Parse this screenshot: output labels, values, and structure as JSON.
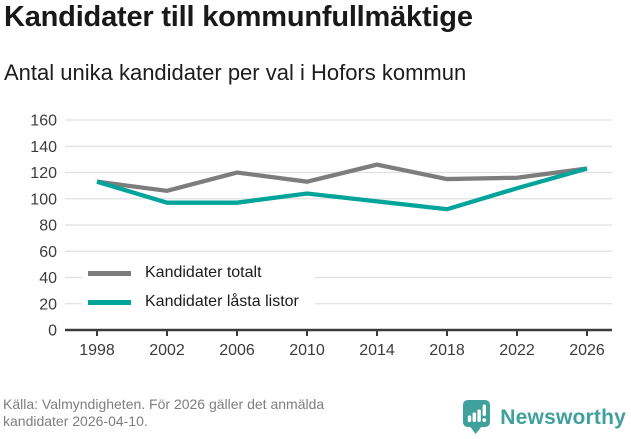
{
  "header": {
    "title": "Kandidater till kommunfullmäktige",
    "subtitle": "Antal unika kandidater per val i Hofors kommun"
  },
  "chart_data": {
    "type": "line",
    "title": "Kandidater till kommunfullmäktige",
    "subtitle": "Antal unika kandidater per val i Hofors kommun",
    "categories": [
      "1998",
      "2002",
      "2006",
      "2010",
      "2014",
      "2018",
      "2022",
      "2026"
    ],
    "series": [
      {
        "name": "Kandidater totalt",
        "color": "#7d7d7d",
        "values": [
          113,
          106,
          120,
          113,
          126,
          115,
          116,
          123
        ]
      },
      {
        "name": "Kandidater låsta listor",
        "color": "#00a49b",
        "values": [
          113,
          97,
          97,
          104,
          98,
          92,
          108,
          123
        ]
      }
    ],
    "ylim": [
      0,
      160
    ],
    "ytick_step": 20,
    "xlabel": "",
    "ylabel": "",
    "grid": true,
    "legend_position": "inside-bottom-left"
  },
  "footer": {
    "source_lines": [
      "Källa: Valmyndigheten. För 2026 gäller det anmälda",
      "kandidater 2026-04-10."
    ],
    "brand": "Newsworthy"
  },
  "colors": {
    "series_total": "#7d7d7d",
    "series_locked": "#00a49b",
    "gridline": "#e0e0e0",
    "axis": "#3c3c3c",
    "axis_text": "#3c3c3c",
    "footer_text": "#7e7e7e",
    "brand_teal": "#3fa09c",
    "background": "#ffffff"
  }
}
